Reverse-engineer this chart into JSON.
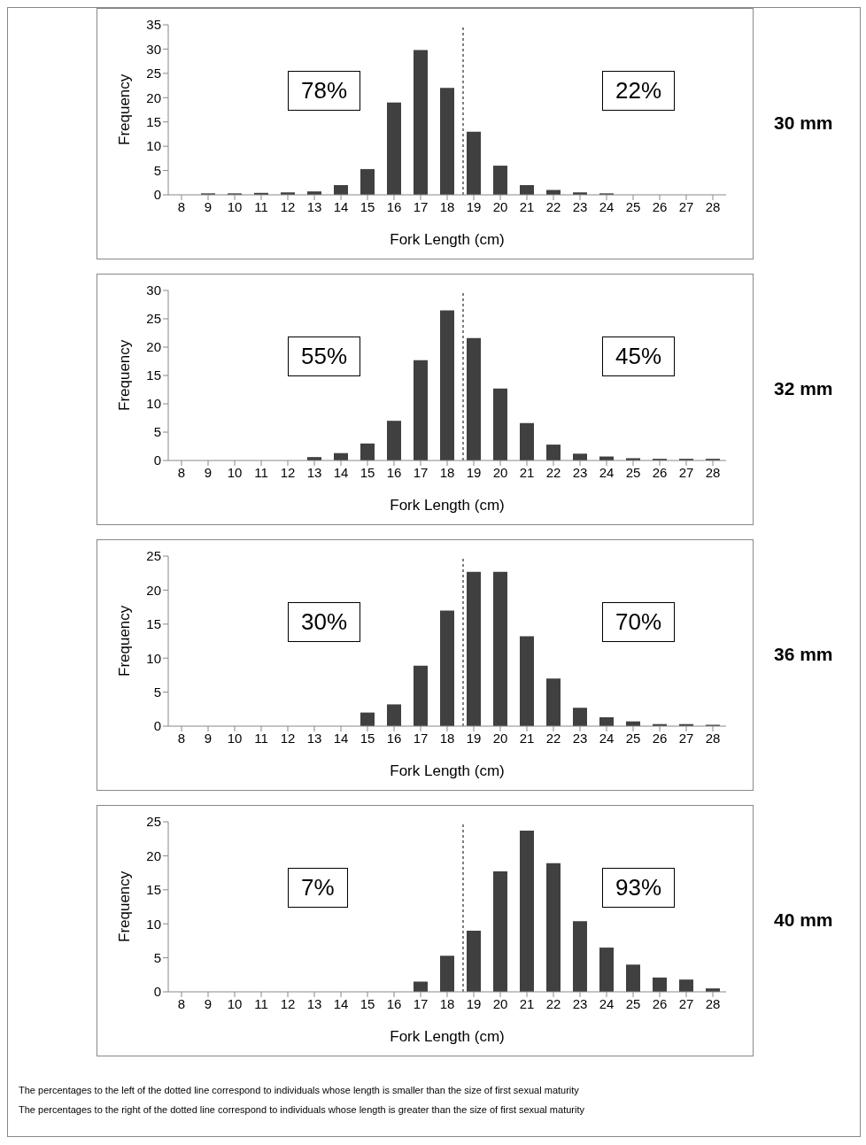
{
  "chart_data": [
    {
      "type": "bar",
      "x": [
        8,
        9,
        10,
        11,
        12,
        13,
        14,
        15,
        16,
        17,
        18,
        19,
        20,
        21,
        22,
        23,
        24,
        25,
        26,
        27,
        28
      ],
      "values": [
        0,
        0.3,
        0.3,
        0.4,
        0.5,
        0.7,
        2,
        5.3,
        19,
        29.8,
        22,
        13,
        6,
        2,
        1,
        0.5,
        0.3,
        0,
        0,
        0,
        0
      ],
      "color": "#404040",
      "xlim": [
        7.5,
        28.5
      ],
      "xticks": [
        8,
        9,
        10,
        11,
        12,
        13,
        14,
        15,
        16,
        17,
        18,
        19,
        20,
        21,
        22,
        23,
        24,
        25,
        26,
        27,
        28
      ],
      "ylim": [
        0,
        35
      ],
      "yticks": [
        0,
        5,
        10,
        15,
        20,
        25,
        30,
        35
      ],
      "xlabel": "Fork Length (cm)",
      "ylabel": "Frequency",
      "ref_lines": [
        {
          "axis": "x",
          "value": 18.6,
          "line_style": "dashed",
          "color": "#000000"
        }
      ],
      "annotations": [
        "78%",
        "22%",
        "30 mm"
      ]
    },
    {
      "type": "bar",
      "x": [
        8,
        9,
        10,
        11,
        12,
        13,
        14,
        15,
        16,
        17,
        18,
        19,
        20,
        21,
        22,
        23,
        24,
        25,
        26,
        27,
        28
      ],
      "values": [
        0,
        0,
        0,
        0,
        0,
        0.6,
        1.3,
        3,
        7,
        17.7,
        26.5,
        21.6,
        12.7,
        6.6,
        2.8,
        1.2,
        0.7,
        0.4,
        0.3,
        0.3,
        0.3
      ],
      "color": "#404040",
      "xlim": [
        7.5,
        28.5
      ],
      "xticks": [
        8,
        9,
        10,
        11,
        12,
        13,
        14,
        15,
        16,
        17,
        18,
        19,
        20,
        21,
        22,
        23,
        24,
        25,
        26,
        27,
        28
      ],
      "ylim": [
        0,
        30
      ],
      "yticks": [
        0,
        5,
        10,
        15,
        20,
        25,
        30
      ],
      "xlabel": "Fork Length (cm)",
      "ylabel": "Frequency",
      "ref_lines": [
        {
          "axis": "x",
          "value": 18.6,
          "line_style": "dashed",
          "color": "#000000"
        }
      ],
      "annotations": [
        "55%",
        "45%",
        "32 mm"
      ]
    },
    {
      "type": "bar",
      "x": [
        8,
        9,
        10,
        11,
        12,
        13,
        14,
        15,
        16,
        17,
        18,
        19,
        20,
        21,
        22,
        23,
        24,
        25,
        26,
        27,
        28
      ],
      "values": [
        0,
        0,
        0,
        0,
        0,
        0,
        0,
        2,
        3.2,
        8.9,
        17,
        22.7,
        22.7,
        13.2,
        7,
        2.7,
        1.3,
        0.7,
        0.3,
        0.3,
        0.2
      ],
      "color": "#404040",
      "xlim": [
        7.5,
        28.5
      ],
      "xticks": [
        8,
        9,
        10,
        11,
        12,
        13,
        14,
        15,
        16,
        17,
        18,
        19,
        20,
        21,
        22,
        23,
        24,
        25,
        26,
        27,
        28
      ],
      "ylim": [
        0,
        25
      ],
      "yticks": [
        0,
        5,
        10,
        15,
        20,
        25
      ],
      "xlabel": "Fork Length (cm)",
      "ylabel": "Frequency",
      "ref_lines": [
        {
          "axis": "x",
          "value": 18.6,
          "line_style": "dashed",
          "color": "#000000"
        }
      ],
      "annotations": [
        "30%",
        "70%",
        "36 mm"
      ]
    },
    {
      "type": "bar",
      "x": [
        8,
        9,
        10,
        11,
        12,
        13,
        14,
        15,
        16,
        17,
        18,
        19,
        20,
        21,
        22,
        23,
        24,
        25,
        26,
        27,
        28
      ],
      "values": [
        0,
        0,
        0,
        0,
        0,
        0,
        0,
        0,
        0,
        1.5,
        5.3,
        9,
        17.7,
        23.7,
        18.9,
        10.4,
        6.5,
        4,
        2.1,
        1.8,
        0.5
      ],
      "color": "#404040",
      "xlim": [
        7.5,
        28.5
      ],
      "xticks": [
        8,
        9,
        10,
        11,
        12,
        13,
        14,
        15,
        16,
        17,
        18,
        19,
        20,
        21,
        22,
        23,
        24,
        25,
        26,
        27,
        28
      ],
      "ylim": [
        0,
        25
      ],
      "yticks": [
        0,
        5,
        10,
        15,
        20,
        25
      ],
      "xlabel": "Fork Length (cm)",
      "ylabel": "Frequency",
      "ref_lines": [
        {
          "axis": "x",
          "value": 18.6,
          "line_style": "dashed",
          "color": "#000000"
        }
      ],
      "annotations": [
        "7%",
        "93%",
        "40 mm",
        "The percentages to the left of the dotted line correspond to individuals whose length is smaller than the size of first sexual maturity",
        "The percentages to the right of the dotted line correspond to individuals whose length is greater than the size of first sexual maturity"
      ]
    }
  ]
}
